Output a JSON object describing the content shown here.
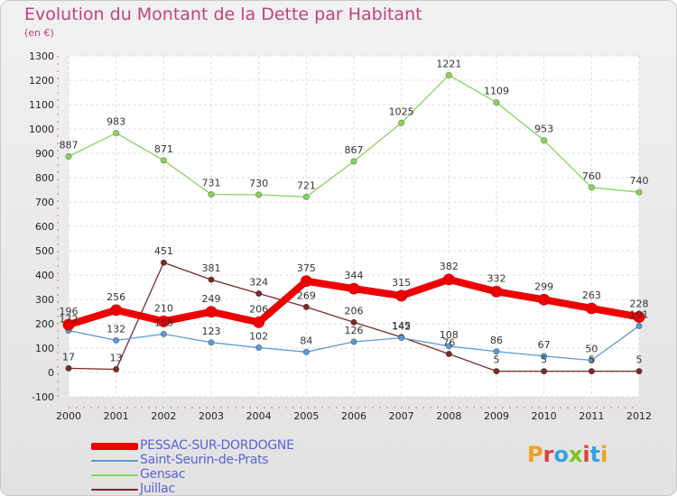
{
  "title": "Evolution du Montant de la Dette par Habitant",
  "subtitle": "(en €)",
  "logo": {
    "text": "Proxiti",
    "colors": [
      "#f0a020",
      "#e04040",
      "#3aa0e0",
      "#80c020",
      "#e04040",
      "#3aa0e0",
      "#f0a020"
    ]
  },
  "chart_data": {
    "type": "line",
    "title": "Evolution du Montant de la Dette par Habitant",
    "subtitle": "(en €)",
    "xlabel": "",
    "ylabel": "",
    "x": [
      "2000",
      "2001",
      "2002",
      "2003",
      "2004",
      "2005",
      "2006",
      "2007",
      "2008",
      "2009",
      "2010",
      "2011",
      "2012"
    ],
    "ylim": [
      -100,
      1300
    ],
    "yticks": [
      "-100",
      "0",
      "100",
      "200",
      "300",
      "400",
      "500",
      "600",
      "700",
      "800",
      "900",
      "1000",
      "1100",
      "1200",
      "1300"
    ],
    "grid": true,
    "legend_position": "bottom-left",
    "series": [
      {
        "name": "PESSAC-SUR-DORDOGNE",
        "color": "#ee0000",
        "values": [
          196,
          256,
          210,
          249,
          206,
          375,
          344,
          315,
          382,
          332,
          299,
          263,
          228
        ],
        "labels": [
          "196",
          "256",
          "210",
          "249",
          "206",
          "375",
          "344",
          "315",
          "382",
          "332",
          "299",
          "263",
          "228"
        ]
      },
      {
        "name": "Saint-Seurin-de-Prats",
        "color": "#5b9bd5",
        "values": [
          172,
          132,
          158,
          123,
          102,
          84,
          126,
          142,
          108,
          86,
          67,
          50,
          191
        ],
        "labels": [
          "172",
          "132",
          "158",
          "123",
          "102",
          "84",
          "126",
          "142",
          "108",
          "86",
          "67",
          "50",
          "191"
        ]
      },
      {
        "name": "Gensac",
        "color": "#88d35e",
        "values": [
          887,
          983,
          871,
          731,
          730,
          721,
          867,
          1025,
          1221,
          1109,
          953,
          760,
          740
        ],
        "labels": [
          "887",
          "983",
          "871",
          "731",
          "730",
          "721",
          "867",
          "1025",
          "1221",
          "1109",
          "953",
          "760",
          "740"
        ]
      },
      {
        "name": "Juillac",
        "color": "#7a2a2a",
        "values": [
          17,
          13,
          451,
          381,
          324,
          269,
          206,
          145,
          76,
          5,
          5,
          5,
          5
        ],
        "labels": [
          "17",
          "13",
          "451",
          "381",
          "324",
          "269",
          "206",
          "145",
          "76",
          "5",
          "5",
          "5",
          "5"
        ]
      }
    ]
  }
}
